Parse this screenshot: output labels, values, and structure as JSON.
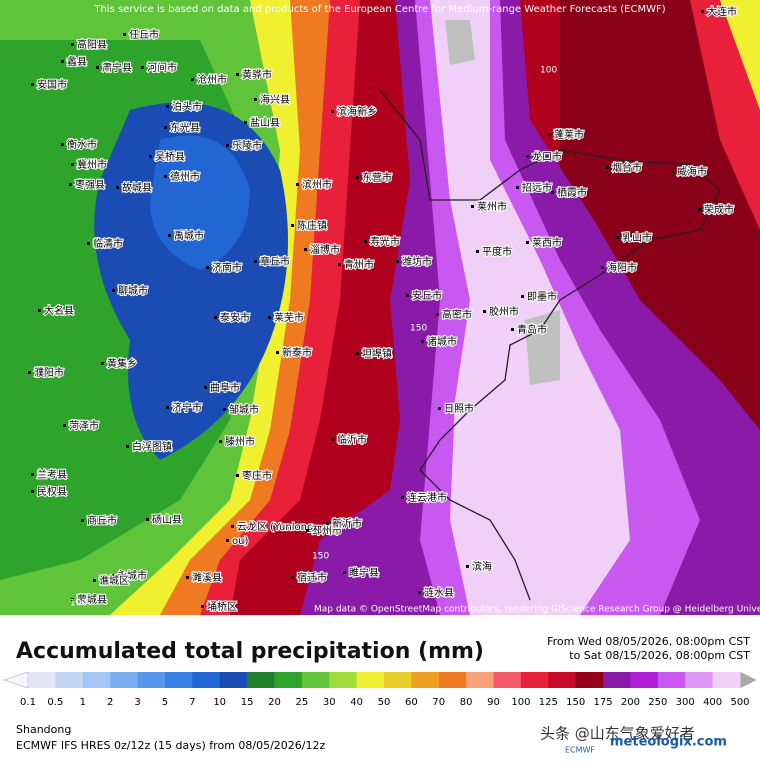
{
  "banner": "This service is based on data and products of the European Centre for Medium-range Weather Forecasts (ECMWF)",
  "map": {
    "cities": [
      "大连市",
      "高阳县",
      "任丘市",
      "蠡县",
      "肃宁县",
      "河间市",
      "安国市",
      "沧州市",
      "黄骅市",
      "泊头市",
      "东光县",
      "海兴县",
      "盐山县",
      "乐陵市",
      "吴桥县",
      "德州市",
      "衡水市",
      "冀州市",
      "枣强县",
      "故城县",
      "滨海新乡",
      "东营市",
      "滨州市",
      "陈庄镇",
      "淄博市",
      "寿光市",
      "青州市",
      "潍坊市",
      "安丘市",
      "诸城市",
      "高密市",
      "胶州市",
      "青岛市",
      "即墨市",
      "平度市",
      "莱州市",
      "招远市",
      "龙口市",
      "蓬莱市",
      "烟台市",
      "栖霞市",
      "莱西市",
      "海阳市",
      "乳山市",
      "威海市",
      "荣成市",
      "日照市",
      "临沂市",
      "坦埠镇",
      "莱芜市",
      "泰安市",
      "济南市",
      "章丘市",
      "禹城市",
      "聊城市",
      "临清市",
      "大名县",
      "濮阳市",
      "黄集乡",
      "新泰市",
      "曲阜市",
      "济宁市",
      "邹城市",
      "滕州市",
      "枣庄市",
      "菏泽市",
      "白浮图镇",
      "兰考县",
      "民权县",
      "商丘市",
      "砀山县",
      "云龙区 (Yunlong",
      "ou)",
      "邳州市",
      "新沂市",
      "睢宁县",
      "宿迁市",
      "连云港市",
      "涟水县",
      "滨海",
      "永城市",
      "濉溪县",
      "埇桥区",
      "谯城区",
      "蒙城县"
    ],
    "contour_labels": [
      "100",
      "150",
      "150",
      "100"
    ],
    "attribution": "Map data © OpenStreetMap contributors, rendering GIScience Research Group @ Heidelberg University"
  },
  "footer": {
    "title": "Accumulated total precipitation (mm)",
    "from": "From Wed 08/05/2026, 08:00pm CST",
    "to": "to Sat 08/15/2026, 08:00pm CST",
    "region": "Shandong",
    "model": "ECMWF IFS HRES 0z/12z (15 days) from  08/05/2026/12z",
    "watermark": "头条 @山东气象爱好者",
    "site": "meteologix.com",
    "logo": "ECMWF"
  },
  "legend": {
    "labels": [
      "0.1",
      "0.5",
      "1",
      "2",
      "3",
      "5",
      "7",
      "10",
      "15",
      "20",
      "25",
      "30",
      "40",
      "50",
      "60",
      "70",
      "80",
      "90",
      "100",
      "125",
      "150",
      "175",
      "200",
      "250",
      "300",
      "400",
      "500"
    ],
    "colors": [
      "#e4e4f6",
      "#c4d8f6",
      "#a2c6f6",
      "#7cb0f2",
      "#5898ec",
      "#3a80e4",
      "#2266d4",
      "#1a4cb4",
      "#1e7e2a",
      "#2ea42c",
      "#60c43a",
      "#a0dc3a",
      "#f0f030",
      "#e8cc28",
      "#f0a020",
      "#f07a22",
      "#f8a078",
      "#f45a6a",
      "#e8203a",
      "#c80a28",
      "#960018",
      "#8a1aa8",
      "#b020d8",
      "#c858f0",
      "#dc98f4",
      "#f0d0f6"
    ],
    "arrow_left": "#f6f6fc",
    "arrow_right": "#a8a8a8"
  }
}
